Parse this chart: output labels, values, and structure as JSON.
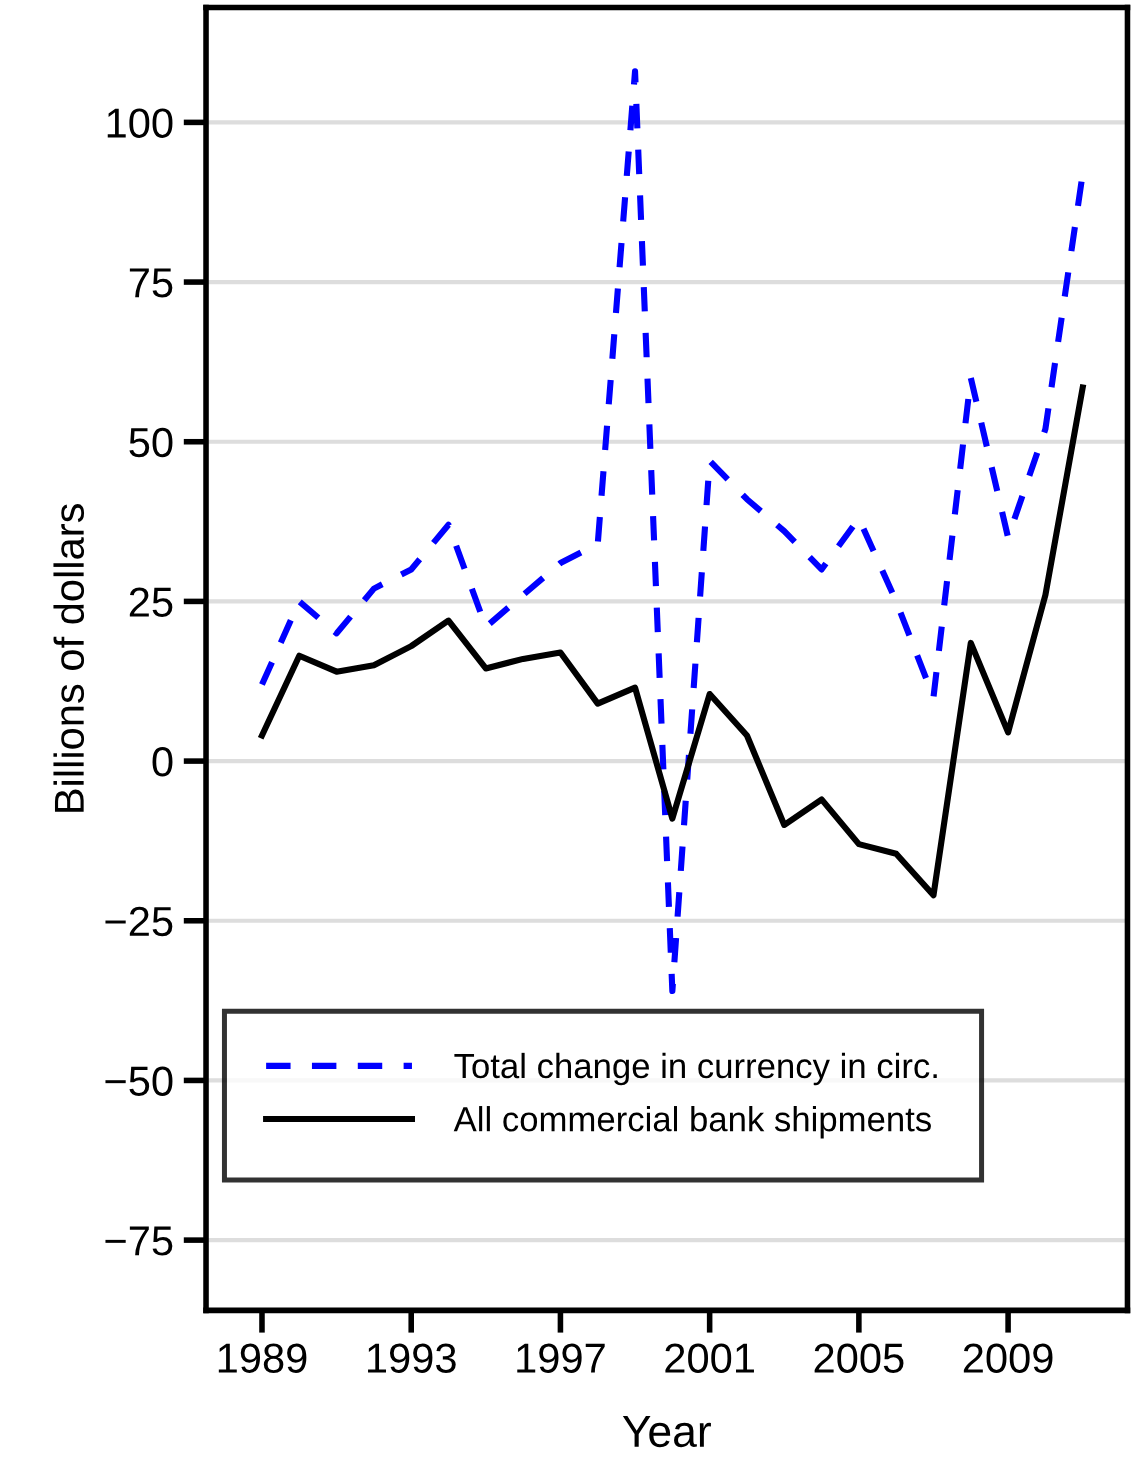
{
  "chart_data": {
    "type": "line",
    "xlabel": "Year",
    "ylabel": "Billions of dollars",
    "x": [
      1989,
      1990,
      1991,
      1992,
      1993,
      1994,
      1995,
      1996,
      1997,
      1998,
      1999,
      2000,
      2001,
      2002,
      2003,
      2004,
      2005,
      2006,
      2007,
      2008,
      2009,
      2010,
      2011
    ],
    "series": [
      {
        "name": "Total change in currency in circ.",
        "color": "#0000ff",
        "line_style": "dashed",
        "values": [
          12,
          25,
          20,
          27,
          30,
          37,
          21,
          26,
          31,
          34,
          108,
          -36,
          47,
          41,
          36,
          30,
          38,
          25,
          10,
          60,
          35,
          52,
          92
        ]
      },
      {
        "name": "All commercial bank shipments",
        "color": "#000000",
        "line_style": "solid",
        "values": [
          4,
          16.5,
          14,
          15,
          18,
          22,
          14.5,
          16,
          17,
          9,
          11.5,
          -9,
          10.5,
          4,
          -10,
          -6,
          -13,
          -14.5,
          -21,
          18.5,
          4.5,
          26,
          58.5
        ]
      }
    ],
    "xlim": [
      1987.5,
      2012.2
    ],
    "xticks": [
      1989,
      1993,
      1997,
      2001,
      2005,
      2009
    ],
    "ylim": [
      -86,
      118
    ],
    "yticks": [
      {
        "value": -75,
        "label": "−75"
      },
      {
        "value": -50,
        "label": "−50"
      },
      {
        "value": -25,
        "label": "−25"
      },
      0,
      25,
      50,
      75,
      100
    ],
    "grid": "y",
    "legend": "bottom",
    "marker": "none"
  }
}
